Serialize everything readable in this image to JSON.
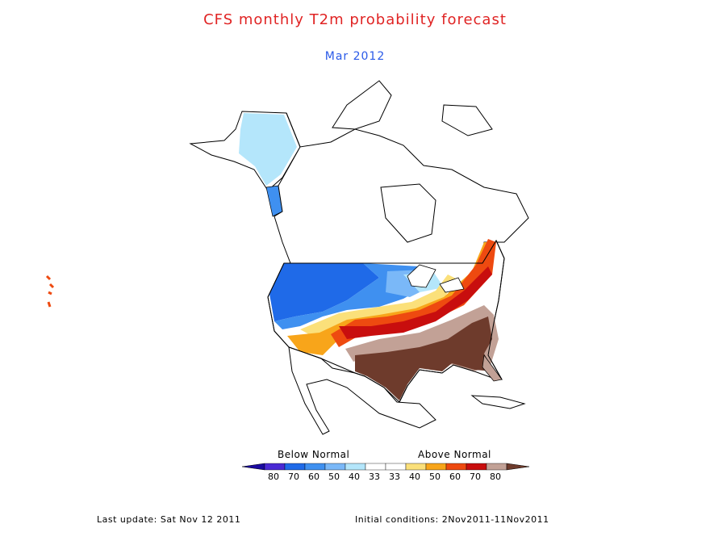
{
  "header": {
    "title": "CFS monthly T2m probability forecast",
    "subtitle": "Mar 2012"
  },
  "colors": {
    "title": "#e02424",
    "subtitle": "#2a5ae8",
    "land_outline": "#000000",
    "below_80": "#1a0aa0",
    "below_70": "#4a2ad4",
    "below_60": "#1f6ae8",
    "below_50": "#3f90f0",
    "below_40": "#7ab8f8",
    "below_33": "#b4e6fb",
    "neutral": "#ffffff",
    "above_40": "#fbe07a",
    "above_50": "#f8a51a",
    "above_60": "#ee4a10",
    "above_70": "#c80e0e",
    "above_80": "#c2a196",
    "above_max": "#6e3b2c"
  },
  "legend": {
    "below_label": "Below Normal",
    "above_label": "Above Normal",
    "below_ticks": [
      "80",
      "70",
      "60",
      "50",
      "40",
      "33"
    ],
    "above_ticks": [
      "33",
      "40",
      "50",
      "60",
      "70",
      "80"
    ]
  },
  "footer": {
    "last_update": "Last update: Sat Nov 12 2011",
    "initial_conditions": "Initial conditions: 2Nov2011-11Nov2011"
  }
}
